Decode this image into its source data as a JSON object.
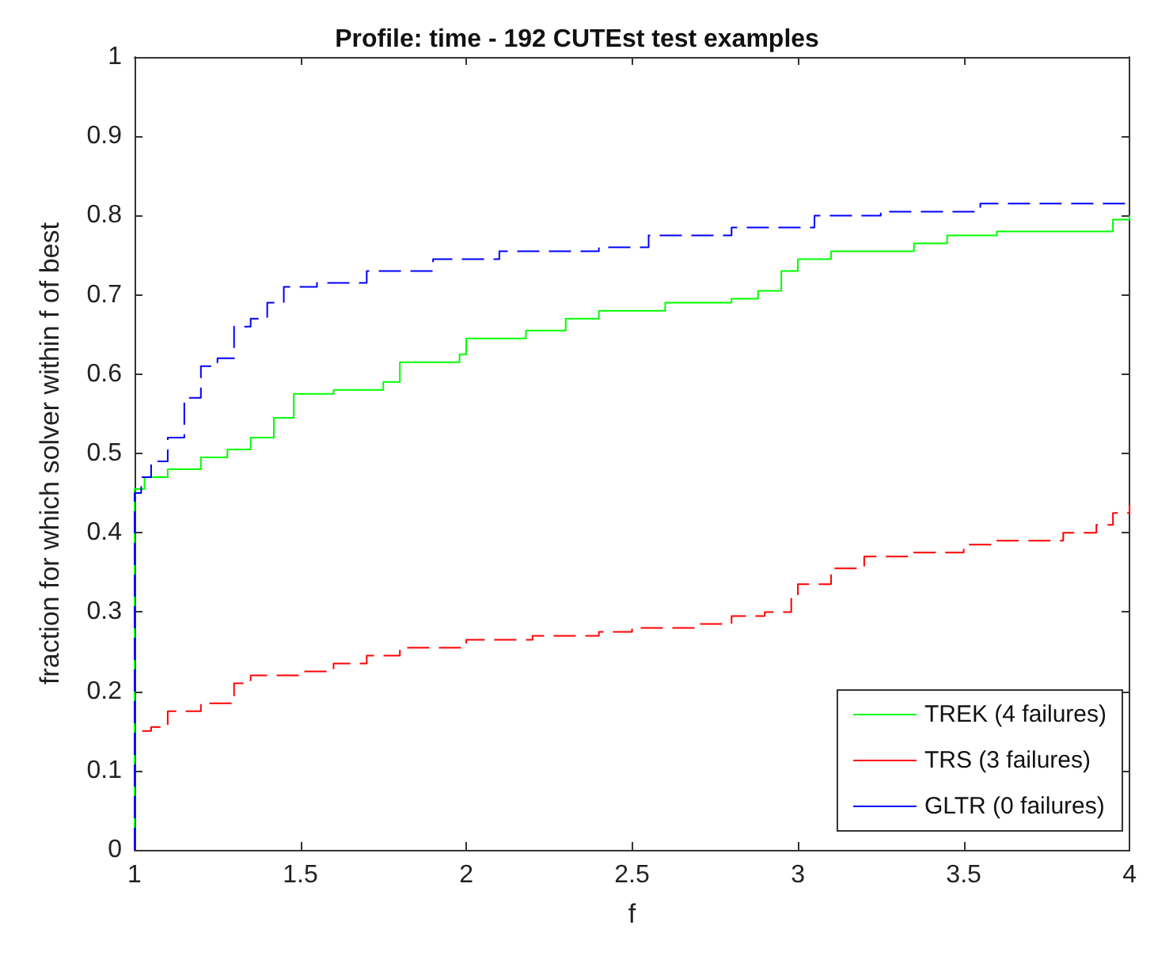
{
  "chart_data": {
    "type": "step",
    "title": "Profile: time - 192 CUTEst test examples",
    "xlabel": "f",
    "ylabel": "fraction for which solver within f of best",
    "xlim": [
      1,
      4
    ],
    "xticks": [
      1,
      1.5,
      2,
      2.5,
      3,
      3.5,
      4
    ],
    "ylim": [
      0,
      1
    ],
    "yticks": [
      0,
      0.1,
      0.2,
      0.3,
      0.4,
      0.5,
      0.6,
      0.7,
      0.8,
      0.9,
      1
    ],
    "grid": false,
    "legend": "bottom right",
    "marker": "none",
    "series": [
      {
        "name": "TREK (4 failures)",
        "color": "#00ff00",
        "line_style": "solid",
        "x": [
          1,
          1,
          1.03,
          1.1,
          1.2,
          1.28,
          1.35,
          1.42,
          1.48,
          1.6,
          1.75,
          1.8,
          1.98,
          2.0,
          2.18,
          2.3,
          2.4,
          2.6,
          2.8,
          2.88,
          2.95,
          3.0,
          3.1,
          3.35,
          3.45,
          3.6,
          3.95,
          4
        ],
        "values": [
          0,
          0.455,
          0.47,
          0.48,
          0.495,
          0.505,
          0.52,
          0.545,
          0.575,
          0.58,
          0.59,
          0.615,
          0.625,
          0.645,
          0.655,
          0.67,
          0.68,
          0.69,
          0.695,
          0.705,
          0.73,
          0.745,
          0.755,
          0.765,
          0.775,
          0.78,
          0.795,
          0.8
        ]
      },
      {
        "name": "TRS (3 failures)",
        "color": "#ff0000",
        "line_style": "dashed",
        "x": [
          1,
          1,
          1.05,
          1.1,
          1.2,
          1.3,
          1.35,
          1.5,
          1.6,
          1.7,
          1.8,
          2.0,
          2.2,
          2.4,
          2.5,
          2.7,
          2.8,
          2.9,
          2.98,
          3.0,
          3.1,
          3.2,
          3.35,
          3.5,
          3.6,
          3.8,
          3.9,
          3.95,
          4
        ],
        "values": [
          0,
          0.15,
          0.155,
          0.175,
          0.185,
          0.21,
          0.22,
          0.225,
          0.235,
          0.245,
          0.255,
          0.265,
          0.27,
          0.275,
          0.28,
          0.285,
          0.295,
          0.3,
          0.32,
          0.335,
          0.355,
          0.37,
          0.375,
          0.385,
          0.39,
          0.4,
          0.41,
          0.425,
          0.435
        ]
      },
      {
        "name": "GLTR (0 failures)",
        "color": "#0000ff",
        "line_style": "dashed",
        "x": [
          1,
          1,
          1.02,
          1.05,
          1.1,
          1.15,
          1.2,
          1.25,
          1.3,
          1.35,
          1.4,
          1.45,
          1.55,
          1.7,
          1.9,
          2.1,
          2.4,
          2.55,
          2.8,
          3.05,
          3.25,
          3.55,
          4
        ],
        "values": [
          0,
          0.45,
          0.47,
          0.49,
          0.52,
          0.57,
          0.61,
          0.62,
          0.66,
          0.67,
          0.69,
          0.71,
          0.715,
          0.73,
          0.745,
          0.755,
          0.76,
          0.775,
          0.785,
          0.8,
          0.805,
          0.815,
          0.82
        ]
      }
    ]
  }
}
